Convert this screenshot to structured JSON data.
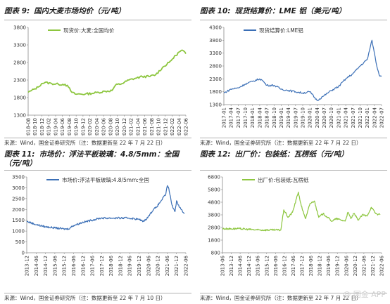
{
  "charts": [
    {
      "id": "c9",
      "title_num": "图表 9:",
      "title_text": "国内大麦市场均价（元/吨）",
      "source": "来源：Wind，国金证券研究所（注：数据更新至 22 年 7 月 22 日）"
    },
    {
      "id": "c10",
      "title_num": "图表 10:",
      "title_text": "现货结算价：LME 铝（美元/吨）",
      "source": "来源：Wind，国金证券研究所（注：数据更新至 22 年 7 月 22 日）"
    },
    {
      "id": "c11",
      "title_num": "图表 11:",
      "title_text": "市场价：浮法平板玻璃：4.8/5mm：全国（元/吨）",
      "source": "来源：Wind，国金证券研究所（注：数据更新至 22 年 7 月 10 日）"
    },
    {
      "id": "c12",
      "title_num": "图表 12:",
      "title_text": "出厂价：包装纸：瓦楞纸（元/吨）",
      "source": "来源：Wind，国金证券研究所（注：数据更新至 22 年 7 月 22 日）"
    }
  ],
  "watermark": "@ 国金 APP",
  "chart_data": [
    {
      "type": "line",
      "title": "国内大麦市场均价（元/吨）",
      "series": [
        {
          "name": "现货价:大麦:全国均价",
          "color": "#8dc63f"
        }
      ],
      "x_tick_labels": [
        "2018-08",
        "2018-10",
        "2018-12",
        "2019-02",
        "2019-04",
        "2019-06",
        "2019-08",
        "2019-10",
        "2019-12",
        "2020-02",
        "2020-04",
        "2020-06",
        "2020-08",
        "2020-10",
        "2020-12",
        "2021-02",
        "2021-04",
        "2021-06",
        "2021-08",
        "2021-10",
        "2021-12",
        "2022-02",
        "2022-04",
        "2022-06"
      ],
      "y_ticks": [
        1300,
        1800,
        2300,
        2800,
        3300,
        3800
      ],
      "ylim": [
        1300,
        3800
      ],
      "x_range": [
        "2018-08",
        "2022-07"
      ],
      "points": [
        [
          "2018-08",
          1950
        ],
        [
          "2018-09",
          2000
        ],
        [
          "2018-10",
          2050
        ],
        [
          "2018-11",
          2100
        ],
        [
          "2018-12",
          2200
        ],
        [
          "2019-01",
          2230
        ],
        [
          "2019-03",
          2200
        ],
        [
          "2019-05",
          2180
        ],
        [
          "2019-07",
          2180
        ],
        [
          "2019-08",
          2100
        ],
        [
          "2019-09",
          1950
        ],
        [
          "2019-10",
          1900
        ],
        [
          "2020-01",
          1900
        ],
        [
          "2020-03",
          1920
        ],
        [
          "2020-05",
          1950
        ],
        [
          "2020-07",
          1980
        ],
        [
          "2020-09",
          2000
        ],
        [
          "2020-10",
          2150
        ],
        [
          "2020-12",
          2200
        ],
        [
          "2021-02",
          2300
        ],
        [
          "2021-04",
          2350
        ],
        [
          "2021-06",
          2400
        ],
        [
          "2021-08",
          2400
        ],
        [
          "2021-10",
          2450
        ],
        [
          "2021-12",
          2650
        ],
        [
          "2022-02",
          2800
        ],
        [
          "2022-03",
          2900
        ],
        [
          "2022-04",
          3000
        ],
        [
          "2022-05",
          3100
        ],
        [
          "2022-06",
          3150
        ],
        [
          "2022-07",
          3050
        ]
      ]
    },
    {
      "type": "line",
      "title": "现货结算价：LME 铝（美元/吨）",
      "series": [
        {
          "name": "现货结算价:LME铝",
          "color": "#3b6fb6"
        }
      ],
      "x_tick_labels": [
        "2017-01",
        "2017-04",
        "2017-07",
        "2017-10",
        "2018-01",
        "2018-04",
        "2018-07",
        "2018-10",
        "2019-01",
        "2019-04",
        "2019-07",
        "2019-10",
        "2020-01",
        "2020-04",
        "2020-07",
        "2020-10",
        "2021-01",
        "2021-04",
        "2021-07",
        "2021-10",
        "2022-01",
        "2022-04",
        "2022-07"
      ],
      "y_ticks": [
        1300,
        1800,
        2300,
        2800,
        3300,
        3800,
        4300
      ],
      "ylim": [
        1300,
        4300
      ],
      "x_range": [
        "2017-01",
        "2022-07"
      ],
      "points": [
        [
          "2017-01",
          1750
        ],
        [
          "2017-04",
          1900
        ],
        [
          "2017-07",
          1950
        ],
        [
          "2017-10",
          2100
        ],
        [
          "2018-01",
          2200
        ],
        [
          "2018-04",
          2300
        ],
        [
          "2018-05",
          2250
        ],
        [
          "2018-07",
          2050
        ],
        [
          "2018-10",
          2050
        ],
        [
          "2019-01",
          1900
        ],
        [
          "2019-04",
          1850
        ],
        [
          "2019-07",
          1800
        ],
        [
          "2019-10",
          1750
        ],
        [
          "2020-01",
          1800
        ],
        [
          "2020-04",
          1460
        ],
        [
          "2020-07",
          1650
        ],
        [
          "2020-10",
          1850
        ],
        [
          "2021-01",
          2000
        ],
        [
          "2021-04",
          2300
        ],
        [
          "2021-07",
          2500
        ],
        [
          "2021-10",
          2800
        ],
        [
          "2022-01",
          3050
        ],
        [
          "2022-03",
          3800
        ],
        [
          "2022-04",
          3300
        ],
        [
          "2022-05",
          2800
        ],
        [
          "2022-06",
          2450
        ],
        [
          "2022-07",
          2400
        ]
      ]
    },
    {
      "type": "line",
      "title": "市场价：浮法平板玻璃：4.8/5mm：全国（元/吨）",
      "series": [
        {
          "name": "市场价:浮法平板玻璃:4.8/5mm:全国",
          "color": "#3b6fb6"
        }
      ],
      "x_tick_labels": [
        "2013-12",
        "2014-06",
        "2014-12",
        "2015-06",
        "2015-12",
        "2016-06",
        "2016-12",
        "2017-06",
        "2017-12",
        "2018-06",
        "2018-12",
        "2019-06",
        "2019-12",
        "2020-06",
        "2020-12",
        "2021-06",
        "2021-12",
        "2022-06"
      ],
      "y_ticks": [
        0,
        500,
        1000,
        1500,
        2000,
        2500,
        3000,
        3500
      ],
      "ylim": [
        0,
        3500
      ],
      "x_range": [
        "2013-12",
        "2022-07"
      ],
      "points": [
        [
          "2013-12",
          1450
        ],
        [
          "2014-06",
          1300
        ],
        [
          "2014-12",
          1200
        ],
        [
          "2015-06",
          1150
        ],
        [
          "2015-12",
          1100
        ],
        [
          "2016-03",
          1100
        ],
        [
          "2016-06",
          1250
        ],
        [
          "2016-12",
          1400
        ],
        [
          "2017-06",
          1500
        ],
        [
          "2017-12",
          1600
        ],
        [
          "2018-06",
          1600
        ],
        [
          "2018-12",
          1600
        ],
        [
          "2019-06",
          1600
        ],
        [
          "2019-12",
          1550
        ],
        [
          "2020-04",
          1450
        ],
        [
          "2020-07",
          1700
        ],
        [
          "2020-10",
          2000
        ],
        [
          "2020-12",
          2100
        ],
        [
          "2021-03",
          2400
        ],
        [
          "2021-06",
          2700
        ],
        [
          "2021-07",
          3100
        ],
        [
          "2021-08",
          2950
        ],
        [
          "2021-10",
          2200
        ],
        [
          "2021-12",
          1900
        ],
        [
          "2022-01",
          2400
        ],
        [
          "2022-03",
          2100
        ],
        [
          "2022-06",
          1800
        ]
      ]
    },
    {
      "type": "line",
      "title": "出厂价：包装纸：瓦楞纸（元/吨）",
      "series": [
        {
          "name": "出厂价:包装纸:瓦楞纸",
          "color": "#8dc63f"
        }
      ],
      "x_tick_labels": [
        "2013-06",
        "2013-12",
        "2014-06",
        "2014-12",
        "2015-06",
        "2015-12",
        "2016-06",
        "2016-12",
        "2017-06",
        "2017-12",
        "2018-06",
        "2018-12",
        "2019-06",
        "2019-12",
        "2020-06",
        "2020-12",
        "2021-06",
        "2021-12",
        "2022-06"
      ],
      "y_ticks": [
        800,
        1800,
        2800,
        3800,
        4800,
        5800,
        6800
      ],
      "ylim": [
        800,
        6800
      ],
      "x_range": [
        "2013-06",
        "2022-07"
      ],
      "points": [
        [
          "2013-06",
          2700
        ],
        [
          "2014-06",
          2700
        ],
        [
          "2015-06",
          2600
        ],
        [
          "2016-06",
          2600
        ],
        [
          "2016-10",
          2600
        ],
        [
          "2016-12",
          4200
        ],
        [
          "2017-03",
          3600
        ],
        [
          "2017-06",
          4000
        ],
        [
          "2017-10",
          5600
        ],
        [
          "2017-12",
          4500
        ],
        [
          "2018-03",
          3500
        ],
        [
          "2018-06",
          4700
        ],
        [
          "2018-09",
          4900
        ],
        [
          "2018-12",
          3600
        ],
        [
          "2019-03",
          3900
        ],
        [
          "2019-06",
          3600
        ],
        [
          "2019-09",
          3300
        ],
        [
          "2019-12",
          3500
        ],
        [
          "2020-03",
          3400
        ],
        [
          "2020-06",
          3300
        ],
        [
          "2020-08",
          4000
        ],
        [
          "2020-10",
          3500
        ],
        [
          "2020-12",
          3900
        ],
        [
          "2021-03",
          3400
        ],
        [
          "2021-06",
          3800
        ],
        [
          "2021-09",
          3700
        ],
        [
          "2021-12",
          4400
        ],
        [
          "2022-03",
          3900
        ],
        [
          "2022-06",
          3800
        ]
      ]
    }
  ]
}
